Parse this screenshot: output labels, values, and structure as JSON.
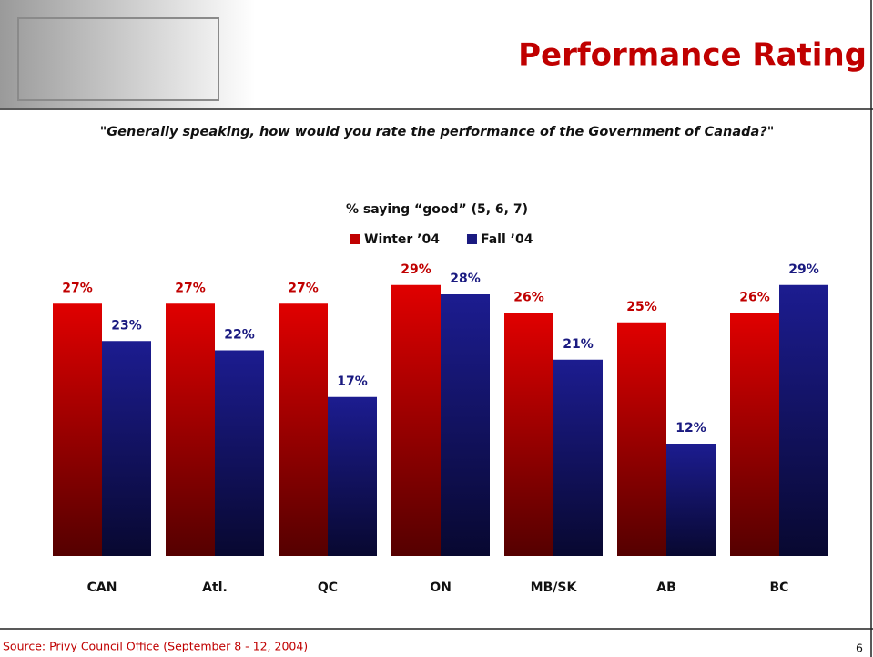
{
  "header": {
    "title": "Performance Rating"
  },
  "question": "\"Generally speaking, how would you rate the performance of the Government of Canada?\"",
  "source": "Source: Privy Council Office (September 8 - 12, 2004)",
  "page_number": 6,
  "chart_data": {
    "type": "bar",
    "title": "% saying “good” (5, 6, 7)",
    "categories": [
      "CAN",
      "Atl.",
      "QC",
      "ON",
      "MB/SK",
      "AB",
      "BC"
    ],
    "series": [
      {
        "name": "Winter ’04",
        "color": "#c00000",
        "values": [
          27,
          27,
          27,
          29,
          26,
          25,
          26
        ],
        "value_labels": [
          "27%",
          "27%",
          "27%",
          "29%",
          "26%",
          "25%",
          "26%"
        ]
      },
      {
        "name": "Fall ’04",
        "color": "#1a1a80",
        "values": [
          23,
          22,
          17,
          28,
          21,
          12,
          29
        ],
        "value_labels": [
          "23%",
          "22%",
          "17%",
          "28%",
          "21%",
          "12%",
          "29%"
        ]
      }
    ],
    "ylim": [
      0,
      30
    ],
    "grid": false
  }
}
